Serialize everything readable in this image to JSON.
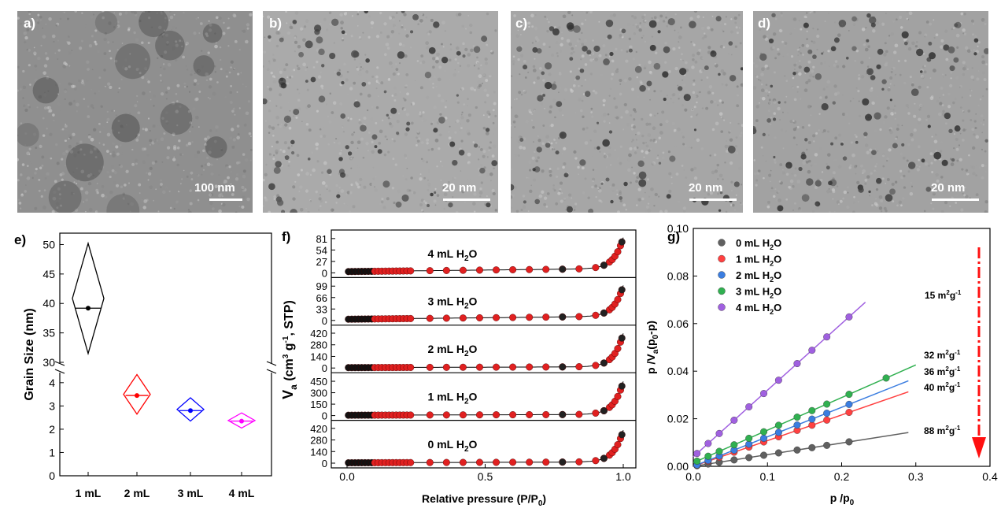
{
  "tem_panels": [
    {
      "label": "a)",
      "scale": "100 nm",
      "tone": "#8f8f8f",
      "dots": 14
    },
    {
      "label": "b)",
      "scale": "20 nm",
      "tone": "#aaaaaa",
      "dots": 90
    },
    {
      "label": "c)",
      "scale": "20 nm",
      "tone": "#a6a6a6",
      "dots": 90
    },
    {
      "label": "d)",
      "scale": "20 nm",
      "tone": "#a2a2a2",
      "dots": 95
    }
  ],
  "chart_data": [
    {
      "panel": "e)",
      "type": "scatter",
      "ylabel": "Grain Size (nm)",
      "categories": [
        "1 mL",
        "2 mL",
        "3 mL",
        "4 mL"
      ],
      "upper_ticks": [
        "30",
        "35",
        "40",
        "45",
        "50"
      ],
      "lower_ticks": [
        "0",
        "1",
        "2",
        "3",
        "4"
      ],
      "series": [
        {
          "category": "1 mL",
          "mean": 39.2,
          "min": 31.5,
          "max": 50.2,
          "color": "#000000"
        },
        {
          "category": "2 mL",
          "mean": 3.45,
          "min": 2.65,
          "max": 4.35,
          "color": "#ff0000"
        },
        {
          "category": "3 mL",
          "mean": 2.8,
          "min": 2.35,
          "max": 3.35,
          "color": "#0000ff"
        },
        {
          "category": "4 mL",
          "mean": 2.35,
          "min": 2.05,
          "max": 2.7,
          "color": "#ff00ff"
        }
      ]
    },
    {
      "panel": "f)",
      "type": "scatter",
      "xlabel": "Relative pressure (P/P",
      "xlabel_sub": "0",
      "xlabel_end": ")",
      "ylabel_main": "V",
      "ylabel_sub": "a",
      "ylabel_rest": " (cm",
      "ylabel_sup1": "3",
      "ylabel_mid": " g",
      "ylabel_sup2": "-1",
      "ylabel_end": ", STP)",
      "xticks": [
        "0.0",
        "0.5",
        "1.0"
      ],
      "xlim": [
        0,
        1
      ],
      "subplots": [
        {
          "name": "4 mL H",
          "sub": "2",
          "tail": "O",
          "ymax": 90,
          "ticks": [
            0,
            27,
            54,
            81
          ],
          "end": 85,
          "knee": 12
        },
        {
          "name": "3 mL H",
          "sub": "2",
          "tail": "O",
          "ymax": 110,
          "ticks": [
            0,
            33,
            66,
            99
          ],
          "end": 103,
          "knee": 14
        },
        {
          "name": "2 mL H",
          "sub": "2",
          "tail": "O",
          "ymax": 460,
          "ticks": [
            0,
            140,
            280,
            420
          ],
          "end": 420,
          "knee": 18
        },
        {
          "name": "1 mL H",
          "sub": "2",
          "tail": "O",
          "ymax": 500,
          "ticks": [
            0,
            150,
            300,
            450
          ],
          "end": 450,
          "knee": 18
        },
        {
          "name": "0 mL H",
          "sub": "2",
          "tail": "O",
          "ymax": 460,
          "ticks": [
            0,
            140,
            280,
            420
          ],
          "end": 400,
          "knee": 18
        }
      ]
    },
    {
      "panel": "g)",
      "type": "scatter",
      "xlabel": "p /p",
      "xlabel_sub": "0",
      "ylabel_a": "p /V",
      "ylabel_sub": "a",
      "ylabel_b": "(p",
      "ylabel_sub2": "0",
      "ylabel_c": "-p)",
      "xlim": [
        0,
        0.4
      ],
      "ylim": [
        0,
        0.1
      ],
      "xticks": [
        0,
        0.1,
        0.2,
        0.3,
        0.4
      ],
      "yticks": [
        0,
        0.02,
        0.04,
        0.06,
        0.08,
        0.1
      ],
      "xtick_labels": [
        "0.0",
        "0.1",
        "0.2",
        "0.3",
        "0.4"
      ],
      "ytick_labels": [
        "0.00",
        "0.02",
        "0.04",
        "0.06",
        "0.08",
        "0.10"
      ],
      "series": [
        {
          "name": "0 mL H",
          "sub": "2",
          "tail": "O",
          "color": "#606060",
          "slope": 0.049,
          "intercept": 0.0,
          "x": [
            0.005,
            0.02,
            0.035,
            0.055,
            0.075,
            0.095,
            0.115,
            0.14,
            0.16,
            0.18,
            0.21
          ],
          "area": "88 m",
          "area_sup": "2",
          "area_tail": "g",
          "area_sup2": "-1",
          "line_end": 0.29
        },
        {
          "name": "1 mL H",
          "sub": "2",
          "tail": "O",
          "color": "#ff4040",
          "slope": 0.108,
          "intercept": 0.0,
          "x": [
            0.005,
            0.02,
            0.035,
            0.055,
            0.075,
            0.095,
            0.115,
            0.14,
            0.16,
            0.18,
            0.21
          ],
          "area": "40 m",
          "area_sup": "2",
          "area_tail": "g",
          "area_sup2": "-1",
          "line_end": 0.29
        },
        {
          "name": "2 mL H",
          "sub": "2",
          "tail": "O",
          "color": "#3a7de0",
          "slope": 0.124,
          "intercept": 0.0,
          "x": [
            0.005,
            0.02,
            0.035,
            0.055,
            0.075,
            0.095,
            0.115,
            0.14,
            0.16,
            0.18,
            0.21
          ],
          "area": "36 m",
          "area_sup": "2",
          "area_tail": "g",
          "area_sup2": "-1",
          "line_end": 0.29
        },
        {
          "name": "3 mL H",
          "sub": "2",
          "tail": "O",
          "color": "#30b050",
          "slope": 0.137,
          "intercept": 0.0015,
          "x": [
            0.005,
            0.02,
            0.035,
            0.055,
            0.075,
            0.095,
            0.115,
            0.14,
            0.16,
            0.18,
            0.21,
            0.26
          ],
          "area": "32 m",
          "area_sup": "2",
          "area_tail": "g",
          "area_sup2": "-1",
          "line_end": 0.3
        },
        {
          "name": "4 mL H",
          "sub": "2",
          "tail": "O",
          "color": "#a060e0",
          "slope": 0.28,
          "intercept": 0.004,
          "x": [
            0.005,
            0.02,
            0.035,
            0.055,
            0.075,
            0.095,
            0.115,
            0.14,
            0.16,
            0.18,
            0.21
          ],
          "area": "15 m",
          "area_sup": "2",
          "area_tail": "g",
          "area_sup2": "-1",
          "line_end": 0.232
        }
      ]
    }
  ]
}
